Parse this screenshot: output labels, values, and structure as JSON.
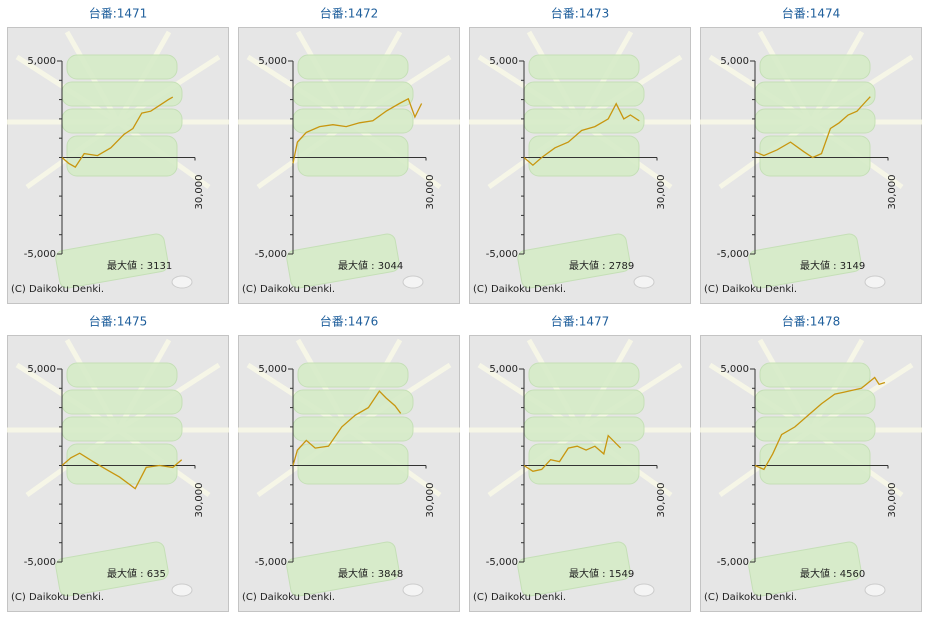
{
  "chart_data": [
    {
      "type": "line",
      "title": "台番:1471",
      "color": "#c8960f",
      "xlim": [
        0,
        30000
      ],
      "xticks": [
        {
          "value": 30000,
          "label": "30,000"
        }
      ],
      "ylim": [
        -5000,
        5000
      ],
      "yticks": [
        {
          "value": 5000,
          "label": "5,000"
        },
        {
          "value": -5000,
          "label": "-5,000"
        }
      ],
      "yminor": [
        -4000,
        -3000,
        -2000,
        -1000,
        0,
        1000,
        2000,
        3000,
        4000
      ],
      "x": [
        0,
        1500,
        3000,
        5000,
        8000,
        11000,
        14000,
        16000,
        18000,
        20000,
        22000,
        24000,
        25000
      ],
      "values": [
        0,
        -300,
        -500,
        200,
        100,
        500,
        1200,
        1500,
        2300,
        2400,
        2700,
        3000,
        3131
      ],
      "annotation": "最大値 : 3131",
      "credit": "(C) Daikoku Denki."
    },
    {
      "type": "line",
      "title": "台番:1472",
      "color": "#c8960f",
      "xlim": [
        0,
        30000
      ],
      "xticks": [
        {
          "value": 30000,
          "label": "30,000"
        }
      ],
      "ylim": [
        -5000,
        5000
      ],
      "yticks": [
        {
          "value": 5000,
          "label": "5,000"
        },
        {
          "value": -5000,
          "label": "-5,000"
        }
      ],
      "yminor": [
        -4000,
        -3000,
        -2000,
        -1000,
        0,
        1000,
        2000,
        3000,
        4000
      ],
      "x": [
        0,
        1000,
        3000,
        6000,
        9000,
        12000,
        15000,
        18000,
        21000,
        24000,
        26000,
        27500,
        29000
      ],
      "values": [
        -300,
        800,
        1300,
        1600,
        1700,
        1600,
        1800,
        1900,
        2400,
        2800,
        3044,
        2100,
        2800
      ],
      "annotation": "最大値 : 3044",
      "credit": "(C) Daikoku Denki."
    },
    {
      "type": "line",
      "title": "台番:1473",
      "color": "#c8960f",
      "xlim": [
        0,
        30000
      ],
      "xticks": [
        {
          "value": 30000,
          "label": "30,000"
        }
      ],
      "ylim": [
        -5000,
        5000
      ],
      "yticks": [
        {
          "value": 5000,
          "label": "5,000"
        },
        {
          "value": -5000,
          "label": "-5,000"
        }
      ],
      "yminor": [
        -4000,
        -3000,
        -2000,
        -1000,
        0,
        1000,
        2000,
        3000,
        4000
      ],
      "x": [
        0,
        2000,
        4000,
        7000,
        10000,
        13000,
        16000,
        19000,
        20800,
        22500,
        24000,
        26000
      ],
      "values": [
        0,
        -400,
        0,
        500,
        800,
        1400,
        1600,
        2000,
        2789,
        2000,
        2200,
        1900
      ],
      "annotation": "最大値 : 2789",
      "credit": "(C) Daikoku Denki."
    },
    {
      "type": "line",
      "title": "台番:1474",
      "color": "#c8960f",
      "xlim": [
        0,
        30000
      ],
      "xticks": [
        {
          "value": 30000,
          "label": "30,000"
        }
      ],
      "ylim": [
        -5000,
        5000
      ],
      "yticks": [
        {
          "value": 5000,
          "label": "5,000"
        },
        {
          "value": -5000,
          "label": "-5,000"
        }
      ],
      "yminor": [
        -4000,
        -3000,
        -2000,
        -1000,
        0,
        1000,
        2000,
        3000,
        4000
      ],
      "x": [
        0,
        2000,
        5000,
        8000,
        11000,
        13000,
        15000,
        17000,
        19000,
        21000,
        23000,
        25000,
        26000
      ],
      "values": [
        300,
        100,
        400,
        800,
        300,
        0,
        200,
        1500,
        1800,
        2200,
        2400,
        2900,
        3149
      ],
      "annotation": "最大値 : 3149",
      "credit": "(C) Daikoku Denki."
    },
    {
      "type": "line",
      "title": "台番:1475",
      "color": "#c8960f",
      "xlim": [
        0,
        30000
      ],
      "xticks": [
        {
          "value": 30000,
          "label": "30,000"
        }
      ],
      "ylim": [
        -5000,
        5000
      ],
      "yticks": [
        {
          "value": 5000,
          "label": "5,000"
        },
        {
          "value": -5000,
          "label": "-5,000"
        }
      ],
      "yminor": [
        -4000,
        -3000,
        -2000,
        -1000,
        0,
        1000,
        2000,
        3000,
        4000
      ],
      "x": [
        0,
        2000,
        4000,
        7000,
        10000,
        13000,
        16500,
        19000,
        22000,
        25000,
        27000
      ],
      "values": [
        0,
        400,
        635,
        200,
        -200,
        -600,
        -1200,
        -100,
        0,
        -100,
        300
      ],
      "annotation": "最大値 : 635",
      "credit": "(C) Daikoku Denki."
    },
    {
      "type": "line",
      "title": "台番:1476",
      "color": "#c8960f",
      "xlim": [
        0,
        30000
      ],
      "xticks": [
        {
          "value": 30000,
          "label": "30,000"
        }
      ],
      "ylim": [
        -5000,
        5000
      ],
      "yticks": [
        {
          "value": 5000,
          "label": "5,000"
        },
        {
          "value": -5000,
          "label": "-5,000"
        }
      ],
      "yminor": [
        -4000,
        -3000,
        -2000,
        -1000,
        0,
        1000,
        2000,
        3000,
        4000
      ],
      "x": [
        0,
        1000,
        3000,
        5000,
        8000,
        11000,
        14000,
        17000,
        19500,
        21000,
        23000,
        24300
      ],
      "values": [
        0,
        800,
        1300,
        900,
        1000,
        2000,
        2600,
        3000,
        3848,
        3500,
        3100,
        2700
      ],
      "annotation": "最大値 : 3848",
      "credit": "(C) Daikoku Denki."
    },
    {
      "type": "line",
      "title": "台番:1477",
      "color": "#c8960f",
      "xlim": [
        0,
        30000
      ],
      "xticks": [
        {
          "value": 30000,
          "label": "30,000"
        }
      ],
      "ylim": [
        -5000,
        5000
      ],
      "yticks": [
        {
          "value": 5000,
          "label": "5,000"
        },
        {
          "value": -5000,
          "label": "-5,000"
        }
      ],
      "yminor": [
        -4000,
        -3000,
        -2000,
        -1000,
        0,
        1000,
        2000,
        3000,
        4000
      ],
      "x": [
        0,
        2000,
        4000,
        6000,
        8000,
        10000,
        12000,
        14000,
        16000,
        18000,
        19000,
        21800
      ],
      "values": [
        0,
        -300,
        -200,
        300,
        200,
        900,
        1000,
        800,
        1000,
        600,
        1549,
        900
      ],
      "annotation": "最大値 : 1549",
      "credit": "(C) Daikoku Denki."
    },
    {
      "type": "line",
      "title": "台番:1478",
      "color": "#c8960f",
      "xlim": [
        0,
        30000
      ],
      "xticks": [
        {
          "value": 30000,
          "label": "30,000"
        }
      ],
      "ylim": [
        -5000,
        5000
      ],
      "yticks": [
        {
          "value": 5000,
          "label": "5,000"
        },
        {
          "value": -5000,
          "label": "-5,000"
        }
      ],
      "yminor": [
        -4000,
        -3000,
        -2000,
        -1000,
        0,
        1000,
        2000,
        3000,
        4000
      ],
      "x": [
        0,
        2000,
        4000,
        6000,
        9000,
        12000,
        15000,
        18000,
        20000,
        22000,
        24000,
        27000,
        28000,
        29300
      ],
      "values": [
        0,
        -200,
        600,
        1600,
        2000,
        2600,
        3200,
        3700,
        3800,
        3900,
        4000,
        4560,
        4200,
        4300
      ],
      "annotation": "最大値 : 4560",
      "credit": "(C) Daikoku Denki."
    }
  ]
}
